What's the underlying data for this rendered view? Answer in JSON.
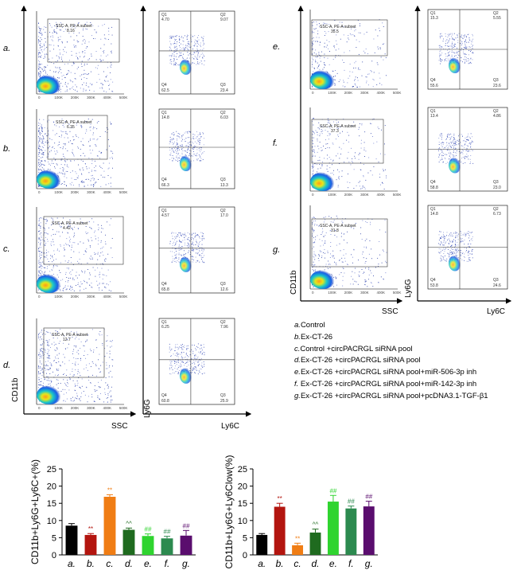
{
  "row_labels": [
    "a.",
    "b.",
    "c.",
    "d.",
    "e.",
    "f.",
    "g."
  ],
  "flow_left": {
    "y_axis_label": "CD11b",
    "x_axis_label": "SSC",
    "gate_label": "SSC-A, PE-A subset",
    "gate_values": [
      "8.16",
      "6.35",
      "4.42",
      "12.7"
    ],
    "x_ticks": [
      "0",
      "100K",
      "200K",
      "300K",
      "400K",
      "500K"
    ]
  },
  "quad_left": {
    "y_axis_label": "Ly6G",
    "x_axis_label": "Ly6C",
    "plots": [
      {
        "q1": "4.70",
        "q2": "9.07",
        "q3": "23.4",
        "q4": "62.5"
      },
      {
        "q1": "14.8",
        "q2": "6.03",
        "q3": "13.3",
        "q4": "66.3"
      },
      {
        "q1": "4.57",
        "q2": "17.0",
        "q3": "12.6",
        "q4": "65.8"
      },
      {
        "q1": "6.25",
        "q2": "7.96",
        "q3": "25.9",
        "q4": "60.8"
      }
    ]
  },
  "flow_right": {
    "y_axis_label": "CD11b",
    "x_axis_label": "SSC",
    "gate_label": "SSC-A, PE-A subset",
    "gate_values": [
      "35.5",
      "37.3",
      "31.8"
    ]
  },
  "quad_right": {
    "y_axis_label": "Ly6G",
    "x_axis_label": "Ly6C",
    "plots": [
      {
        "q1": "15.3",
        "q2": "5.55",
        "q3": "23.6",
        "q4": "55.6"
      },
      {
        "q1": "13.4",
        "q2": "4.86",
        "q3": "23.0",
        "q4": "58.8"
      },
      {
        "q1": "14.8",
        "q2": "6.73",
        "q3": "24.6",
        "q4": "53.8"
      }
    ]
  },
  "quad_names": {
    "q1": "Q1",
    "q2": "Q2",
    "q3": "Q3",
    "q4": "Q4"
  },
  "legend": [
    {
      "key": "a.",
      "text": "Control"
    },
    {
      "key": "b.",
      "text": "Ex-CT-26"
    },
    {
      "key": "c.",
      "text": "Control +circPACRGL siRNA pool"
    },
    {
      "key": "d.",
      "text": "Ex-CT-26 +circPACRGL siRNA pool"
    },
    {
      "key": "e.",
      "text": "Ex-CT-26 +circPACRGL siRNA pool+miR-506-3p inh"
    },
    {
      "key": "f.",
      "text": " Ex-CT-26 +circPACRGL siRNA pool+miR-142-3p inh"
    },
    {
      "key": "g.",
      "text": "Ex-CT-26 +circPACRGL siRNA pool+pcDNA3.1-TGF-β1"
    }
  ],
  "colors": {
    "a": "#000000",
    "b": "#b3150f",
    "c": "#f07d14",
    "d": "#1f6b1f",
    "e": "#2fd42f",
    "f": "#2c8a4f",
    "g": "#5a0d6e"
  },
  "chart_data": [
    {
      "type": "bar",
      "ylabel": "CD11b+Ly6G+Ly6C+(%)",
      "categories": [
        "a.",
        "b.",
        "c.",
        "d.",
        "e.",
        "f.",
        "g."
      ],
      "values": [
        8.5,
        5.8,
        16.9,
        7.3,
        5.5,
        4.8,
        5.6
      ],
      "errors": [
        0.6,
        0.4,
        0.6,
        0.5,
        0.6,
        0.6,
        1.5
      ],
      "annotations": [
        "",
        "**",
        "**",
        "^^",
        "##",
        "##",
        "##"
      ],
      "yticks": [
        "0",
        "5",
        "10",
        "15",
        "20",
        "25"
      ],
      "ylim": [
        0,
        25
      ]
    },
    {
      "type": "bar",
      "ylabel": "CD11b+Ly6G+Ly6Clow(%)",
      "categories": [
        "a.",
        "b.",
        "c.",
        "d.",
        "e.",
        "f.",
        "g."
      ],
      "values": [
        5.8,
        14.0,
        2.8,
        6.5,
        15.5,
        13.5,
        14.1
      ],
      "errors": [
        0.4,
        1.0,
        0.6,
        1.0,
        1.8,
        0.7,
        1.5
      ],
      "annotations": [
        "",
        "**",
        "**",
        "^^",
        "##",
        "##",
        "##"
      ],
      "yticks": [
        "0",
        "5",
        "10",
        "15",
        "20",
        "25"
      ],
      "ylim": [
        0,
        25
      ]
    }
  ]
}
